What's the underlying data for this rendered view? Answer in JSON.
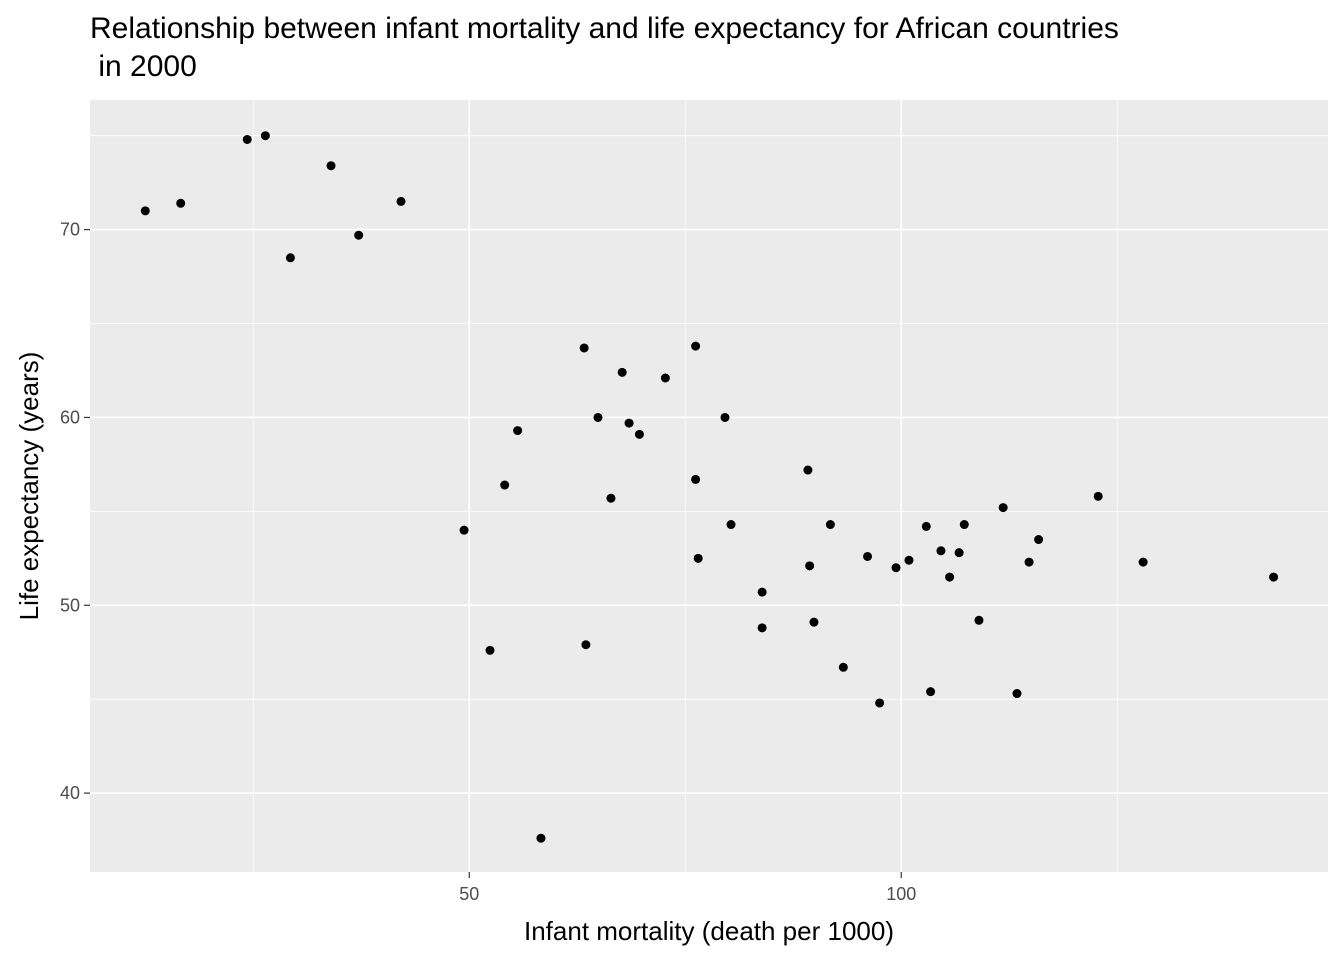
{
  "chart_data": {
    "type": "scatter",
    "title": "Relationship between infant mortality and life expectancy for African countries\n in 2000",
    "x_label": "Infant mortality (death per 1000)",
    "y_label": "Life expectancy (years)",
    "xlim": [
      6.1,
      149.4
    ],
    "ylim": [
      35.8,
      76.9
    ],
    "xticks": [
      50,
      100
    ],
    "yticks": [
      40,
      50,
      60,
      70
    ],
    "x_minor_breaks": [
      25,
      75,
      125
    ],
    "y_minor_breaks": [
      45,
      55,
      65,
      75
    ],
    "grid": true,
    "color": "#000000",
    "x": [
      12.5,
      16.6,
      24.3,
      26.4,
      29.3,
      34.0,
      37.2,
      42.1,
      49.4,
      52.4,
      54.1,
      55.6,
      58.3,
      63.3,
      63.5,
      64.9,
      66.4,
      67.7,
      68.5,
      69.7,
      72.7,
      76.2,
      76.2,
      76.5,
      79.6,
      80.3,
      83.9,
      83.9,
      89.2,
      89.4,
      89.9,
      91.8,
      93.3,
      96.1,
      97.5,
      99.4,
      100.9,
      102.9,
      103.4,
      104.6,
      105.6,
      106.7,
      107.3,
      109.0,
      111.8,
      113.4,
      114.8,
      115.9,
      122.8,
      128.0,
      143.1
    ],
    "values": [
      71.0,
      71.4,
      74.8,
      75.0,
      68.5,
      73.4,
      69.7,
      71.5,
      54.0,
      47.6,
      56.4,
      59.3,
      37.6,
      63.7,
      47.9,
      60.0,
      55.7,
      62.4,
      59.7,
      59.1,
      62.1,
      63.8,
      56.7,
      52.5,
      60.0,
      54.3,
      50.7,
      48.8,
      57.2,
      52.1,
      49.1,
      54.3,
      46.7,
      52.6,
      44.8,
      52.0,
      52.4,
      54.2,
      45.4,
      52.9,
      51.5,
      52.8,
      54.3,
      49.2,
      55.2,
      45.3,
      52.3,
      53.5,
      55.8,
      52.3,
      51.5
    ]
  }
}
